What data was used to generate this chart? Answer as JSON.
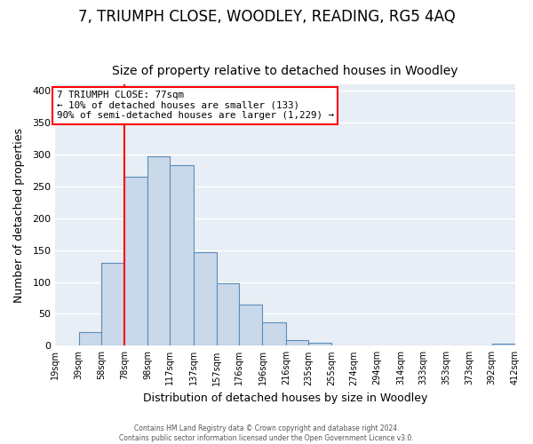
{
  "title": "7, TRIUMPH CLOSE, WOODLEY, READING, RG5 4AQ",
  "subtitle": "Size of property relative to detached houses in Woodley",
  "xlabel": "Distribution of detached houses by size in Woodley",
  "ylabel": "Number of detached properties",
  "bin_edges": [
    19,
    39,
    58,
    78,
    98,
    117,
    137,
    157,
    176,
    196,
    216,
    235,
    255,
    274,
    294,
    314,
    333,
    353,
    373,
    392,
    412
  ],
  "counts": [
    0,
    22,
    130,
    265,
    297,
    283,
    147,
    98,
    65,
    37,
    9,
    5,
    1,
    1,
    1,
    0,
    1,
    0,
    1,
    3
  ],
  "bar_color": "#c9d9ea",
  "bar_edge_color": "#5b8db8",
  "ref_line_x": 78,
  "ref_line_color": "red",
  "annotation_title": "7 TRIUMPH CLOSE: 77sqm",
  "annotation_line1": "← 10% of detached houses are smaller (133)",
  "annotation_line2": "90% of semi-detached houses are larger (1,229) →",
  "annotation_box_color": "white",
  "annotation_box_edge": "red",
  "ylim": [
    0,
    410
  ],
  "tick_labels": [
    "19sqm",
    "39sqm",
    "58sqm",
    "78sqm",
    "98sqm",
    "117sqm",
    "137sqm",
    "157sqm",
    "176sqm",
    "196sqm",
    "216sqm",
    "235sqm",
    "255sqm",
    "274sqm",
    "294sqm",
    "314sqm",
    "333sqm",
    "353sqm",
    "373sqm",
    "392sqm",
    "412sqm"
  ],
  "footer1": "Contains HM Land Registry data © Crown copyright and database right 2024.",
  "footer2": "Contains public sector information licensed under the Open Government Licence v3.0.",
  "plot_bg_color": "#e8eef5",
  "fig_bg_color": "#ffffff",
  "grid_color": "#ffffff",
  "title_fontsize": 12,
  "subtitle_fontsize": 10,
  "title_fontweight": "normal"
}
